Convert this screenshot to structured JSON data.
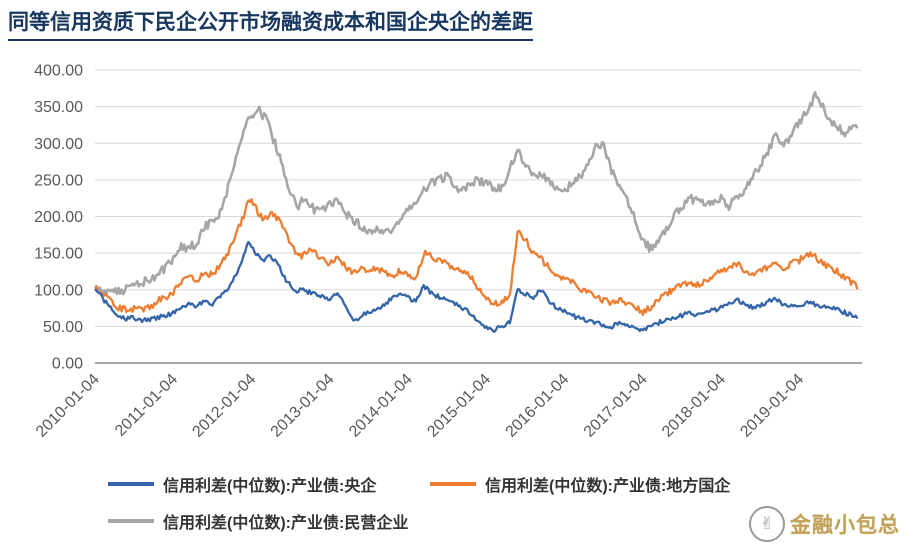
{
  "page": {
    "title": "同等信用资质下民企公开市场融资成本和国企央企的差距"
  },
  "watermark": {
    "text": "金融小包总",
    "icon": "hand-doodle-icon"
  },
  "chart_data": {
    "type": "line",
    "title": "同等信用资质下民企公开市场融资成本和国企央企的差距",
    "xlabel": "",
    "ylabel": "",
    "ylim": [
      0,
      400
    ],
    "yticks": [
      0,
      50,
      100,
      150,
      200,
      250,
      300,
      350,
      400
    ],
    "ytick_labels": [
      "0.00",
      "50.00",
      "100.00",
      "150.00",
      "200.00",
      "250.00",
      "300.00",
      "350.00",
      "400.00"
    ],
    "x_ticks": [
      "2010-01-04",
      "2011-01-04",
      "2012-01-04",
      "2013-01-04",
      "2014-01-04",
      "2015-01-04",
      "2016-01-04",
      "2017-01-04",
      "2018-01-04",
      "2019-01-04"
    ],
    "x_range": [
      2010,
      2019.8
    ],
    "grid": "horizontal",
    "legend_position": "bottom",
    "series": [
      {
        "name": "信用利差(中位数):产业债:央企",
        "color": "#3465A8",
        "points": [
          [
            2010.0,
            100
          ],
          [
            2010.1,
            88
          ],
          [
            2010.2,
            75
          ],
          [
            2010.3,
            65
          ],
          [
            2010.4,
            60
          ],
          [
            2010.5,
            62
          ],
          [
            2010.6,
            58
          ],
          [
            2010.7,
            60
          ],
          [
            2010.8,
            62
          ],
          [
            2010.9,
            65
          ],
          [
            2011.0,
            68
          ],
          [
            2011.1,
            76
          ],
          [
            2011.2,
            80
          ],
          [
            2011.3,
            77
          ],
          [
            2011.4,
            85
          ],
          [
            2011.5,
            80
          ],
          [
            2011.6,
            90
          ],
          [
            2011.7,
            100
          ],
          [
            2011.8,
            120
          ],
          [
            2011.9,
            145
          ],
          [
            2011.95,
            168
          ],
          [
            2012.05,
            150
          ],
          [
            2012.15,
            140
          ],
          [
            2012.25,
            146
          ],
          [
            2012.35,
            132
          ],
          [
            2012.45,
            112
          ],
          [
            2012.55,
            98
          ],
          [
            2012.65,
            100
          ],
          [
            2012.75,
            96
          ],
          [
            2012.85,
            92
          ],
          [
            2013.0,
            86
          ],
          [
            2013.1,
            96
          ],
          [
            2013.2,
            78
          ],
          [
            2013.3,
            56
          ],
          [
            2013.4,
            64
          ],
          [
            2013.5,
            70
          ],
          [
            2013.6,
            75
          ],
          [
            2013.7,
            80
          ],
          [
            2013.8,
            90
          ],
          [
            2013.9,
            95
          ],
          [
            2014.0,
            90
          ],
          [
            2014.1,
            84
          ],
          [
            2014.2,
            106
          ],
          [
            2014.3,
            95
          ],
          [
            2014.4,
            90
          ],
          [
            2014.5,
            86
          ],
          [
            2014.6,
            80
          ],
          [
            2014.7,
            75
          ],
          [
            2014.8,
            68
          ],
          [
            2014.9,
            55
          ],
          [
            2015.0,
            48
          ],
          [
            2015.1,
            45
          ],
          [
            2015.2,
            50
          ],
          [
            2015.3,
            56
          ],
          [
            2015.4,
            100
          ],
          [
            2015.5,
            94
          ],
          [
            2015.6,
            90
          ],
          [
            2015.7,
            100
          ],
          [
            2015.8,
            85
          ],
          [
            2015.9,
            75
          ],
          [
            2016.0,
            70
          ],
          [
            2016.1,
            65
          ],
          [
            2016.2,
            60
          ],
          [
            2016.3,
            58
          ],
          [
            2016.4,
            55
          ],
          [
            2016.5,
            52
          ],
          [
            2016.6,
            50
          ],
          [
            2016.7,
            55
          ],
          [
            2016.8,
            52
          ],
          [
            2016.9,
            48
          ],
          [
            2017.0,
            44
          ],
          [
            2017.1,
            50
          ],
          [
            2017.2,
            55
          ],
          [
            2017.3,
            60
          ],
          [
            2017.4,
            62
          ],
          [
            2017.5,
            65
          ],
          [
            2017.6,
            68
          ],
          [
            2017.7,
            65
          ],
          [
            2017.8,
            68
          ],
          [
            2017.9,
            72
          ],
          [
            2018.0,
            75
          ],
          [
            2018.1,
            80
          ],
          [
            2018.2,
            86
          ],
          [
            2018.3,
            80
          ],
          [
            2018.4,
            76
          ],
          [
            2018.5,
            78
          ],
          [
            2018.6,
            85
          ],
          [
            2018.7,
            88
          ],
          [
            2018.8,
            80
          ],
          [
            2018.9,
            78
          ],
          [
            2019.0,
            76
          ],
          [
            2019.1,
            85
          ],
          [
            2019.2,
            80
          ],
          [
            2019.3,
            78
          ],
          [
            2019.4,
            75
          ],
          [
            2019.5,
            72
          ],
          [
            2019.6,
            68
          ],
          [
            2019.75,
            62
          ]
        ]
      },
      {
        "name": "信用利差(中位数):产业债:地方国企",
        "color": "#ED7D31",
        "points": [
          [
            2010.0,
            105
          ],
          [
            2010.1,
            95
          ],
          [
            2010.2,
            85
          ],
          [
            2010.3,
            76
          ],
          [
            2010.4,
            72
          ],
          [
            2010.5,
            75
          ],
          [
            2010.6,
            72
          ],
          [
            2010.7,
            76
          ],
          [
            2010.8,
            85
          ],
          [
            2010.9,
            90
          ],
          [
            2011.0,
            96
          ],
          [
            2011.1,
            110
          ],
          [
            2011.2,
            120
          ],
          [
            2011.3,
            113
          ],
          [
            2011.4,
            125
          ],
          [
            2011.5,
            120
          ],
          [
            2011.6,
            135
          ],
          [
            2011.7,
            150
          ],
          [
            2011.8,
            175
          ],
          [
            2011.9,
            200
          ],
          [
            2011.97,
            225
          ],
          [
            2012.05,
            212
          ],
          [
            2012.15,
            196
          ],
          [
            2012.25,
            206
          ],
          [
            2012.35,
            196
          ],
          [
            2012.45,
            176
          ],
          [
            2012.55,
            152
          ],
          [
            2012.65,
            146
          ],
          [
            2012.75,
            156
          ],
          [
            2012.85,
            146
          ],
          [
            2013.0,
            136
          ],
          [
            2013.1,
            146
          ],
          [
            2013.2,
            130
          ],
          [
            2013.3,
            124
          ],
          [
            2013.4,
            130
          ],
          [
            2013.5,
            125
          ],
          [
            2013.6,
            130
          ],
          [
            2013.7,
            125
          ],
          [
            2013.8,
            120
          ],
          [
            2013.9,
            125
          ],
          [
            2014.0,
            120
          ],
          [
            2014.1,
            113
          ],
          [
            2014.2,
            150
          ],
          [
            2014.3,
            145
          ],
          [
            2014.4,
            140
          ],
          [
            2014.5,
            136
          ],
          [
            2014.6,
            130
          ],
          [
            2014.7,
            125
          ],
          [
            2014.8,
            118
          ],
          [
            2014.9,
            100
          ],
          [
            2015.0,
            86
          ],
          [
            2015.1,
            80
          ],
          [
            2015.2,
            85
          ],
          [
            2015.3,
            92
          ],
          [
            2015.4,
            180
          ],
          [
            2015.5,
            170
          ],
          [
            2015.6,
            150
          ],
          [
            2015.7,
            142
          ],
          [
            2015.8,
            130
          ],
          [
            2015.9,
            120
          ],
          [
            2016.0,
            115
          ],
          [
            2016.1,
            110
          ],
          [
            2016.2,
            100
          ],
          [
            2016.3,
            95
          ],
          [
            2016.4,
            90
          ],
          [
            2016.5,
            86
          ],
          [
            2016.6,
            82
          ],
          [
            2016.7,
            86
          ],
          [
            2016.8,
            80
          ],
          [
            2016.9,
            76
          ],
          [
            2017.0,
            70
          ],
          [
            2017.1,
            76
          ],
          [
            2017.2,
            85
          ],
          [
            2017.3,
            95
          ],
          [
            2017.4,
            100
          ],
          [
            2017.5,
            106
          ],
          [
            2017.6,
            110
          ],
          [
            2017.7,
            106
          ],
          [
            2017.8,
            110
          ],
          [
            2017.9,
            120
          ],
          [
            2018.0,
            126
          ],
          [
            2018.1,
            130
          ],
          [
            2018.2,
            136
          ],
          [
            2018.3,
            126
          ],
          [
            2018.4,
            120
          ],
          [
            2018.5,
            125
          ],
          [
            2018.6,
            130
          ],
          [
            2018.7,
            136
          ],
          [
            2018.8,
            130
          ],
          [
            2018.9,
            136
          ],
          [
            2019.0,
            140
          ],
          [
            2019.1,
            150
          ],
          [
            2019.2,
            145
          ],
          [
            2019.3,
            136
          ],
          [
            2019.4,
            130
          ],
          [
            2019.5,
            124
          ],
          [
            2019.6,
            115
          ],
          [
            2019.75,
            104
          ]
        ]
      },
      {
        "name": "信用利差(中位数):产业债:民营企业",
        "color": "#A6A6A6",
        "points": [
          [
            2010.0,
            104
          ],
          [
            2010.1,
            98
          ],
          [
            2010.2,
            95
          ],
          [
            2010.3,
            98
          ],
          [
            2010.4,
            100
          ],
          [
            2010.5,
            106
          ],
          [
            2010.6,
            110
          ],
          [
            2010.7,
            114
          ],
          [
            2010.8,
            120
          ],
          [
            2010.9,
            130
          ],
          [
            2011.0,
            140
          ],
          [
            2011.1,
            160
          ],
          [
            2011.2,
            156
          ],
          [
            2011.3,
            165
          ],
          [
            2011.4,
            185
          ],
          [
            2011.5,
            195
          ],
          [
            2011.6,
            205
          ],
          [
            2011.7,
            240
          ],
          [
            2011.8,
            280
          ],
          [
            2011.9,
            320
          ],
          [
            2012.0,
            340
          ],
          [
            2012.1,
            345
          ],
          [
            2012.2,
            330
          ],
          [
            2012.3,
            300
          ],
          [
            2012.4,
            268
          ],
          [
            2012.5,
            230
          ],
          [
            2012.6,
            215
          ],
          [
            2012.7,
            226
          ],
          [
            2012.8,
            210
          ],
          [
            2012.9,
            212
          ],
          [
            2013.0,
            216
          ],
          [
            2013.1,
            226
          ],
          [
            2013.2,
            205
          ],
          [
            2013.3,
            196
          ],
          [
            2013.4,
            186
          ],
          [
            2013.5,
            180
          ],
          [
            2013.6,
            186
          ],
          [
            2013.7,
            176
          ],
          [
            2013.8,
            180
          ],
          [
            2013.9,
            196
          ],
          [
            2014.0,
            210
          ],
          [
            2014.1,
            220
          ],
          [
            2014.2,
            236
          ],
          [
            2014.3,
            245
          ],
          [
            2014.4,
            250
          ],
          [
            2014.5,
            256
          ],
          [
            2014.6,
            240
          ],
          [
            2014.7,
            236
          ],
          [
            2014.8,
            245
          ],
          [
            2014.9,
            250
          ],
          [
            2015.0,
            245
          ],
          [
            2015.1,
            236
          ],
          [
            2015.2,
            240
          ],
          [
            2015.3,
            265
          ],
          [
            2015.4,
            290
          ],
          [
            2015.5,
            270
          ],
          [
            2015.6,
            256
          ],
          [
            2015.7,
            260
          ],
          [
            2015.8,
            250
          ],
          [
            2015.9,
            240
          ],
          [
            2016.0,
            236
          ],
          [
            2016.1,
            245
          ],
          [
            2016.2,
            256
          ],
          [
            2016.3,
            270
          ],
          [
            2016.4,
            295
          ],
          [
            2016.5,
            300
          ],
          [
            2016.6,
            262
          ],
          [
            2016.7,
            240
          ],
          [
            2016.8,
            224
          ],
          [
            2016.9,
            195
          ],
          [
            2017.0,
            165
          ],
          [
            2017.1,
            156
          ],
          [
            2017.2,
            166
          ],
          [
            2017.3,
            185
          ],
          [
            2017.4,
            200
          ],
          [
            2017.5,
            215
          ],
          [
            2017.6,
            226
          ],
          [
            2017.7,
            220
          ],
          [
            2017.8,
            215
          ],
          [
            2017.9,
            220
          ],
          [
            2018.0,
            226
          ],
          [
            2018.1,
            215
          ],
          [
            2018.2,
            226
          ],
          [
            2018.3,
            236
          ],
          [
            2018.4,
            255
          ],
          [
            2018.5,
            270
          ],
          [
            2018.6,
            290
          ],
          [
            2018.7,
            310
          ],
          [
            2018.8,
            300
          ],
          [
            2018.9,
            310
          ],
          [
            2019.0,
            330
          ],
          [
            2019.1,
            345
          ],
          [
            2019.2,
            365
          ],
          [
            2019.3,
            350
          ],
          [
            2019.4,
            330
          ],
          [
            2019.5,
            320
          ],
          [
            2019.6,
            314
          ],
          [
            2019.75,
            324
          ]
        ]
      }
    ]
  }
}
